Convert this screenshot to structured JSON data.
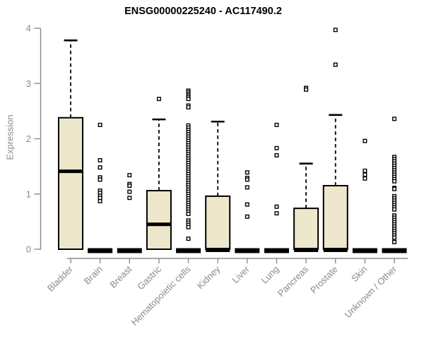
{
  "chart_data": {
    "type": "boxplot",
    "title": "ENSG00000225240 - AC117490.2",
    "xlabel": "",
    "ylabel": "Expression",
    "ylim": [
      0,
      4
    ],
    "yticks": [
      0,
      1,
      2,
      3,
      4
    ],
    "grid": false,
    "legend": "none",
    "axis_color": "#8a8a8a",
    "label_color": "#8a8a8a",
    "box_fill": "#ede8cb",
    "box_stroke": "#000000",
    "categories": [
      "Bladder",
      "Brain",
      "Breast",
      "Gastric",
      "Hematopoietic cells",
      "Kidney",
      "Liver",
      "Lung",
      "Pancreas",
      "Prostate",
      "Skin",
      "Unknown / Other"
    ],
    "boxes": [
      {
        "category": "Bladder",
        "q1": 0,
        "median": 1.41,
        "q3": 2.38,
        "whisker_low": 0,
        "whisker_high": 3.78,
        "outliers": []
      },
      {
        "category": "Brain",
        "q1": 0,
        "median": 0,
        "q3": 0,
        "whisker_low": 0,
        "whisker_high": 0,
        "outliers": [
          2.25,
          1.61,
          1.48,
          1.3,
          1.26,
          1.06,
          1.02,
          0.97,
          0.93,
          0.87
        ]
      },
      {
        "category": "Breast",
        "q1": 0,
        "median": 0,
        "q3": 0,
        "whisker_low": 0,
        "whisker_high": 0,
        "outliers": [
          1.34,
          1.18,
          1.15,
          1.04,
          0.93
        ]
      },
      {
        "category": "Gastric",
        "q1": 0,
        "median": 0.45,
        "q3": 1.06,
        "whisker_low": 0,
        "whisker_high": 2.35,
        "outliers": [
          2.72
        ]
      },
      {
        "category": "Hematopoietic cells",
        "q1": 0,
        "median": 0,
        "q3": 0,
        "whisker_low": 0,
        "whisker_high": 0,
        "outliers": [
          2.87,
          2.84,
          2.81,
          2.78,
          2.75,
          2.72,
          2.6,
          2.57,
          2.24,
          2.2,
          2.16,
          2.12,
          2.08,
          2.04,
          2.0,
          1.96,
          1.92,
          1.88,
          1.84,
          1.8,
          1.76,
          1.72,
          1.68,
          1.64,
          1.6,
          1.56,
          1.52,
          1.48,
          1.44,
          1.4,
          1.36,
          1.32,
          1.28,
          1.24,
          1.2,
          1.16,
          1.12,
          1.08,
          1.04,
          1.0,
          0.96,
          0.92,
          0.88,
          0.84,
          0.8,
          0.76,
          0.72,
          0.68,
          0.64,
          0.52,
          0.48,
          0.44,
          0.4,
          0.19
        ]
      },
      {
        "category": "Kidney",
        "q1": 0,
        "median": 0,
        "q3": 0.96,
        "whisker_low": 0,
        "whisker_high": 2.31,
        "outliers": []
      },
      {
        "category": "Liver",
        "q1": 0,
        "median": 0,
        "q3": 0,
        "whisker_low": 0,
        "whisker_high": 0,
        "outliers": [
          1.39,
          1.29,
          1.26,
          1.12,
          0.81,
          0.59
        ]
      },
      {
        "category": "Lung",
        "q1": 0,
        "median": 0,
        "q3": 0,
        "whisker_low": 0,
        "whisker_high": 0,
        "outliers": [
          2.25,
          1.83,
          1.7,
          0.77,
          0.65
        ]
      },
      {
        "category": "Pancreas",
        "q1": 0,
        "median": 0,
        "q3": 0.74,
        "whisker_low": 0,
        "whisker_high": 1.55,
        "outliers": [
          2.92,
          2.89
        ]
      },
      {
        "category": "Prostate",
        "q1": 0,
        "median": 0,
        "q3": 1.15,
        "whisker_low": 0,
        "whisker_high": 2.43,
        "outliers": [
          3.97,
          3.34
        ]
      },
      {
        "category": "Skin",
        "q1": 0,
        "median": 0,
        "q3": 0,
        "whisker_low": 0,
        "whisker_high": 0,
        "outliers": [
          1.96,
          1.42,
          1.35,
          1.28
        ]
      },
      {
        "category": "Unknown / Other",
        "q1": 0,
        "median": 0,
        "q3": 0,
        "whisker_low": 0,
        "whisker_high": 0,
        "outliers": [
          2.36,
          1.67,
          1.63,
          1.59,
          1.55,
          1.51,
          1.47,
          1.43,
          1.39,
          1.35,
          1.31,
          1.27,
          1.23,
          1.11,
          1.09,
          0.96,
          0.92,
          0.88,
          0.84,
          0.8,
          0.76,
          0.72,
          0.61,
          0.57,
          0.53,
          0.49,
          0.45,
          0.41,
          0.37,
          0.33,
          0.29,
          0.25,
          0.21,
          0.13
        ]
      }
    ]
  }
}
